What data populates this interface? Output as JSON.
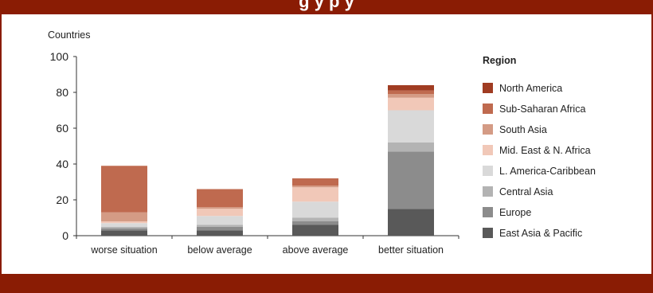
{
  "header": {
    "title": "g  y p                      y"
  },
  "chart_data": {
    "type": "bar",
    "stacked": true,
    "ylabel": "Countries",
    "ylim": [
      0,
      100
    ],
    "yticks": [
      0,
      20,
      40,
      60,
      80,
      100
    ],
    "categories": [
      "worse situation",
      "below average",
      "above average",
      "better situation"
    ],
    "legend_title": "Region",
    "legend_position": "right",
    "series": [
      {
        "name": "East Asia & Pacific",
        "color": "#595959",
        "values": [
          3,
          3,
          6,
          15
        ]
      },
      {
        "name": "Europe",
        "color": "#8c8c8c",
        "values": [
          1,
          2,
          2,
          32
        ]
      },
      {
        "name": "Central Asia",
        "color": "#b3b3b3",
        "values": [
          1,
          1,
          2,
          5
        ]
      },
      {
        "name": "L. America-Caribbean",
        "color": "#d9d9d9",
        "values": [
          2,
          5,
          9,
          18
        ]
      },
      {
        "name": "Mid. East & N. Africa",
        "color": "#f1c8b8",
        "values": [
          1,
          4,
          8,
          7
        ]
      },
      {
        "name": "South Asia",
        "color": "#d49b85",
        "values": [
          5,
          1,
          1,
          2
        ]
      },
      {
        "name": "Sub-Saharan Africa",
        "color": "#bf6a4f",
        "values": [
          26,
          10,
          4,
          2
        ]
      },
      {
        "name": "North America",
        "color": "#a03c22",
        "values": [
          0,
          0,
          0,
          3
        ]
      }
    ]
  }
}
